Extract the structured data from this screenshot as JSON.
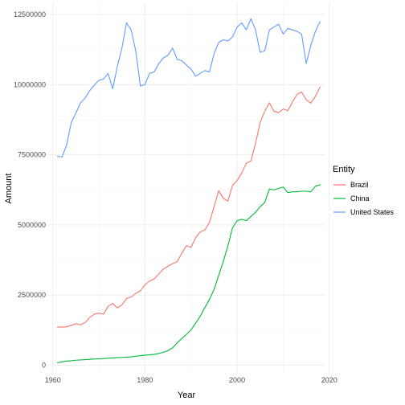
{
  "chart_data": {
    "type": "line",
    "title": "",
    "xlabel": "Year",
    "ylabel": "Amount",
    "xlim": [
      1959,
      2019
    ],
    "ylim": [
      -300000,
      12900000
    ],
    "x_ticks": [
      1960,
      1980,
      2000,
      2020
    ],
    "x_minor_ticks": [
      1970,
      1990,
      2010
    ],
    "y_ticks": [
      0,
      2500000,
      5000000,
      7500000,
      10000000,
      12500000
    ],
    "y_minor_ticks": [
      1250000,
      3750000,
      6250000,
      8750000,
      11250000
    ],
    "grid": true,
    "legend": {
      "title": "Entity",
      "position": "right"
    },
    "series": [
      {
        "name": "Brazil",
        "color": "#F8766D",
        "points": [
          [
            1961,
            1360000
          ],
          [
            1962,
            1360000
          ],
          [
            1963,
            1370000
          ],
          [
            1964,
            1420000
          ],
          [
            1965,
            1480000
          ],
          [
            1966,
            1440000
          ],
          [
            1967,
            1520000
          ],
          [
            1968,
            1700000
          ],
          [
            1969,
            1820000
          ],
          [
            1970,
            1860000
          ],
          [
            1971,
            1820000
          ],
          [
            1972,
            2100000
          ],
          [
            1973,
            2200000
          ],
          [
            1974,
            2040000
          ],
          [
            1975,
            2150000
          ],
          [
            1976,
            2380000
          ],
          [
            1977,
            2430000
          ],
          [
            1978,
            2560000
          ],
          [
            1979,
            2650000
          ],
          [
            1980,
            2870000
          ],
          [
            1981,
            3000000
          ],
          [
            1982,
            3080000
          ],
          [
            1983,
            3250000
          ],
          [
            1984,
            3430000
          ],
          [
            1985,
            3530000
          ],
          [
            1986,
            3620000
          ],
          [
            1987,
            3690000
          ],
          [
            1988,
            3990000
          ],
          [
            1989,
            4260000
          ],
          [
            1990,
            4200000
          ],
          [
            1991,
            4550000
          ],
          [
            1992,
            4750000
          ],
          [
            1993,
            4820000
          ],
          [
            1994,
            5090000
          ],
          [
            1995,
            5650000
          ],
          [
            1996,
            6220000
          ],
          [
            1997,
            5950000
          ],
          [
            1998,
            5850000
          ],
          [
            1999,
            6410000
          ],
          [
            2000,
            6580000
          ],
          [
            2001,
            6850000
          ],
          [
            2002,
            7200000
          ],
          [
            2003,
            7280000
          ],
          [
            2004,
            7900000
          ],
          [
            2005,
            8650000
          ],
          [
            2006,
            9050000
          ],
          [
            2007,
            9350000
          ],
          [
            2008,
            9050000
          ],
          [
            2009,
            9000000
          ],
          [
            2010,
            9130000
          ],
          [
            2011,
            9070000
          ],
          [
            2012,
            9380000
          ],
          [
            2013,
            9650000
          ],
          [
            2014,
            9740000
          ],
          [
            2015,
            9460000
          ],
          [
            2016,
            9340000
          ],
          [
            2017,
            9580000
          ],
          [
            2018,
            9920000
          ]
        ]
      },
      {
        "name": "China",
        "color": "#00BA38",
        "points": [
          [
            1961,
            90000
          ],
          [
            1962,
            120000
          ],
          [
            1963,
            150000
          ],
          [
            1964,
            160000
          ],
          [
            1965,
            180000
          ],
          [
            1966,
            190000
          ],
          [
            1967,
            200000
          ],
          [
            1968,
            210000
          ],
          [
            1969,
            220000
          ],
          [
            1970,
            230000
          ],
          [
            1971,
            240000
          ],
          [
            1972,
            250000
          ],
          [
            1973,
            260000
          ],
          [
            1974,
            270000
          ],
          [
            1975,
            280000
          ],
          [
            1976,
            290000
          ],
          [
            1977,
            300000
          ],
          [
            1978,
            320000
          ],
          [
            1979,
            340000
          ],
          [
            1980,
            360000
          ],
          [
            1981,
            370000
          ],
          [
            1982,
            390000
          ],
          [
            1983,
            420000
          ],
          [
            1984,
            460000
          ],
          [
            1985,
            520000
          ],
          [
            1986,
            620000
          ],
          [
            1987,
            800000
          ],
          [
            1988,
            950000
          ],
          [
            1989,
            1100000
          ],
          [
            1990,
            1260000
          ],
          [
            1991,
            1500000
          ],
          [
            1992,
            1750000
          ],
          [
            1993,
            2050000
          ],
          [
            1994,
            2350000
          ],
          [
            1995,
            2700000
          ],
          [
            1996,
            3200000
          ],
          [
            1997,
            3700000
          ],
          [
            1998,
            4250000
          ],
          [
            1999,
            4900000
          ],
          [
            2000,
            5150000
          ],
          [
            2001,
            5200000
          ],
          [
            2002,
            5150000
          ],
          [
            2003,
            5300000
          ],
          [
            2004,
            5450000
          ],
          [
            2005,
            5650000
          ],
          [
            2006,
            5800000
          ],
          [
            2007,
            6280000
          ],
          [
            2008,
            6250000
          ],
          [
            2009,
            6300000
          ],
          [
            2010,
            6350000
          ],
          [
            2011,
            6150000
          ],
          [
            2012,
            6180000
          ],
          [
            2013,
            6180000
          ],
          [
            2014,
            6200000
          ],
          [
            2015,
            6200000
          ],
          [
            2016,
            6180000
          ],
          [
            2017,
            6380000
          ],
          [
            2018,
            6430000
          ]
        ]
      },
      {
        "name": "United States",
        "color": "#619CFF",
        "points": [
          [
            1961,
            7450000
          ],
          [
            1962,
            7420000
          ],
          [
            1963,
            7850000
          ],
          [
            1964,
            8650000
          ],
          [
            1965,
            8980000
          ],
          [
            1966,
            9350000
          ],
          [
            1967,
            9520000
          ],
          [
            1968,
            9780000
          ],
          [
            1969,
            9980000
          ],
          [
            1970,
            10150000
          ],
          [
            1971,
            10200000
          ],
          [
            1972,
            10400000
          ],
          [
            1973,
            9850000
          ],
          [
            1974,
            10650000
          ],
          [
            1975,
            11300000
          ],
          [
            1976,
            12200000
          ],
          [
            1977,
            11950000
          ],
          [
            1978,
            11200000
          ],
          [
            1979,
            9950000
          ],
          [
            1980,
            10000000
          ],
          [
            1981,
            10400000
          ],
          [
            1982,
            10450000
          ],
          [
            1983,
            10750000
          ],
          [
            1984,
            10950000
          ],
          [
            1985,
            11050000
          ],
          [
            1986,
            11300000
          ],
          [
            1987,
            10900000
          ],
          [
            1988,
            10850000
          ],
          [
            1989,
            10700000
          ],
          [
            1990,
            10550000
          ],
          [
            1991,
            10300000
          ],
          [
            1992,
            10400000
          ],
          [
            1993,
            10500000
          ],
          [
            1994,
            10450000
          ],
          [
            1995,
            11100000
          ],
          [
            1996,
            11500000
          ],
          [
            1997,
            11600000
          ],
          [
            1998,
            11550000
          ],
          [
            1999,
            11700000
          ],
          [
            2000,
            12050000
          ],
          [
            2001,
            12200000
          ],
          [
            2002,
            11950000
          ],
          [
            2003,
            12350000
          ],
          [
            2004,
            11950000
          ],
          [
            2005,
            11150000
          ],
          [
            2006,
            11200000
          ],
          [
            2007,
            11950000
          ],
          [
            2008,
            12050000
          ],
          [
            2009,
            12150000
          ],
          [
            2010,
            11800000
          ],
          [
            2011,
            12000000
          ],
          [
            2012,
            11950000
          ],
          [
            2013,
            11900000
          ],
          [
            2014,
            11800000
          ],
          [
            2015,
            10750000
          ],
          [
            2016,
            11400000
          ],
          [
            2017,
            11900000
          ],
          [
            2018,
            12250000
          ]
        ]
      }
    ]
  }
}
